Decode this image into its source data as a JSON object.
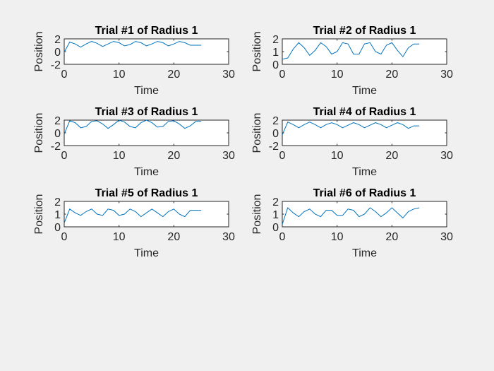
{
  "colors": {
    "background": "#f0f0f0",
    "axes": "#ffffff",
    "text": "#262626",
    "series": "#0072bd"
  },
  "chart_data": [
    {
      "type": "line",
      "title": "Trial #1 of Radius 1",
      "xlabel": "Time",
      "ylabel": "Position",
      "xlim": [
        0,
        30
      ],
      "ylim": [
        -2,
        2
      ],
      "xticks": [
        "0",
        "10",
        "20",
        "30"
      ],
      "yticks": [
        "-2",
        "0",
        "2"
      ],
      "grid": false,
      "series": [
        {
          "x": [
            0,
            1,
            2,
            3,
            4,
            5,
            6,
            7,
            8,
            9,
            10,
            11,
            12,
            13,
            14,
            15,
            16,
            17,
            18,
            19,
            20,
            21,
            22,
            23,
            24,
            25
          ],
          "y": [
            -0.1,
            1.5,
            1.2,
            0.7,
            1.2,
            1.6,
            1.3,
            0.8,
            1.2,
            1.6,
            1.4,
            0.9,
            1.1,
            1.6,
            1.4,
            0.9,
            1.2,
            1.6,
            1.4,
            0.9,
            1.2,
            1.6,
            1.4,
            1.0,
            1.0,
            1.0
          ]
        }
      ]
    },
    {
      "type": "line",
      "title": "Trial #2 of Radius 1",
      "xlabel": "Time",
      "ylabel": "Position",
      "xlim": [
        0,
        30
      ],
      "ylim": [
        0,
        2
      ],
      "xticks": [
        "0",
        "10",
        "20",
        "30"
      ],
      "yticks": [
        "0",
        "1",
        "2"
      ],
      "grid": false,
      "series": [
        {
          "x": [
            0,
            1,
            2,
            3,
            4,
            5,
            6,
            7,
            8,
            9,
            10,
            11,
            12,
            13,
            14,
            15,
            16,
            17,
            18,
            19,
            20,
            21,
            22,
            23,
            24,
            25
          ],
          "y": [
            0.4,
            0.5,
            1.2,
            1.7,
            1.3,
            0.7,
            1.1,
            1.7,
            1.4,
            0.8,
            1.0,
            1.7,
            1.6,
            0.8,
            0.8,
            1.6,
            1.7,
            1.0,
            0.8,
            1.5,
            1.7,
            1.1,
            0.6,
            1.3,
            1.6,
            1.6
          ]
        }
      ]
    },
    {
      "type": "line",
      "title": "Trial #3 of Radius 1",
      "xlabel": "Time",
      "ylabel": "Position",
      "xlim": [
        0,
        30
      ],
      "ylim": [
        -2,
        2
      ],
      "xticks": [
        "0",
        "10",
        "20",
        "30"
      ],
      "yticks": [
        "-2",
        "0",
        "2"
      ],
      "grid": false,
      "series": [
        {
          "x": [
            0,
            1,
            2,
            3,
            4,
            5,
            6,
            7,
            8,
            9,
            10,
            11,
            12,
            13,
            14,
            15,
            16,
            17,
            18,
            19,
            20,
            21,
            22,
            23,
            24,
            25
          ],
          "y": [
            -0.2,
            1.9,
            1.6,
            0.8,
            1.0,
            1.8,
            1.9,
            1.4,
            0.7,
            1.3,
            2.0,
            1.7,
            1.0,
            0.8,
            1.6,
            2.0,
            1.6,
            0.9,
            1.0,
            1.8,
            1.9,
            1.4,
            0.7,
            1.1,
            1.8,
            1.8
          ]
        }
      ]
    },
    {
      "type": "line",
      "title": "Trial #4 of Radius 1",
      "xlabel": "Time",
      "ylabel": "Position",
      "xlim": [
        0,
        30
      ],
      "ylim": [
        -2,
        2
      ],
      "xticks": [
        "0",
        "10",
        "20",
        "30"
      ],
      "yticks": [
        "-2",
        "0",
        "2"
      ],
      "grid": false,
      "series": [
        {
          "x": [
            0,
            1,
            2,
            3,
            4,
            5,
            6,
            7,
            8,
            9,
            10,
            11,
            12,
            13,
            14,
            15,
            16,
            17,
            18,
            19,
            20,
            21,
            22,
            23,
            24,
            25
          ],
          "y": [
            -0.3,
            1.7,
            1.3,
            0.8,
            1.3,
            1.7,
            1.3,
            0.8,
            1.3,
            1.6,
            1.3,
            0.8,
            1.2,
            1.6,
            1.3,
            0.8,
            1.2,
            1.6,
            1.3,
            0.8,
            1.2,
            1.6,
            1.3,
            0.7,
            1.1,
            1.1
          ]
        }
      ]
    },
    {
      "type": "line",
      "title": "Trial #5 of Radius 1",
      "xlabel": "Time",
      "ylabel": "Position",
      "xlim": [
        0,
        30
      ],
      "ylim": [
        0,
        2
      ],
      "xticks": [
        "0",
        "10",
        "20",
        "30"
      ],
      "yticks": [
        "0",
        "1",
        "2"
      ],
      "grid": false,
      "series": [
        {
          "x": [
            0,
            1,
            2,
            3,
            4,
            5,
            6,
            7,
            8,
            9,
            10,
            11,
            12,
            13,
            14,
            15,
            16,
            17,
            18,
            19,
            20,
            21,
            22,
            23,
            24,
            25
          ],
          "y": [
            0.3,
            1.4,
            1.1,
            0.9,
            1.2,
            1.4,
            1.0,
            0.9,
            1.4,
            1.3,
            0.9,
            1.0,
            1.4,
            1.2,
            0.8,
            1.1,
            1.4,
            1.1,
            0.8,
            1.2,
            1.4,
            1.0,
            0.8,
            1.3,
            1.3,
            1.3
          ]
        }
      ]
    },
    {
      "type": "line",
      "title": "Trial #6 of Radius 1",
      "xlabel": "Time",
      "ylabel": "Position",
      "xlim": [
        0,
        30
      ],
      "ylim": [
        0,
        2
      ],
      "xticks": [
        "0",
        "10",
        "20",
        "30"
      ],
      "yticks": [
        "0",
        "1",
        "2"
      ],
      "grid": false,
      "series": [
        {
          "x": [
            0,
            1,
            2,
            3,
            4,
            5,
            6,
            7,
            8,
            9,
            10,
            11,
            12,
            13,
            14,
            15,
            16,
            17,
            18,
            19,
            20,
            21,
            22,
            23,
            24,
            25
          ],
          "y": [
            0.2,
            1.5,
            1.1,
            0.8,
            1.2,
            1.4,
            1.0,
            0.8,
            1.3,
            1.3,
            0.9,
            0.9,
            1.4,
            1.3,
            0.8,
            1.0,
            1.5,
            1.2,
            0.8,
            1.1,
            1.5,
            1.1,
            0.7,
            1.2,
            1.4,
            1.5
          ]
        }
      ]
    }
  ]
}
